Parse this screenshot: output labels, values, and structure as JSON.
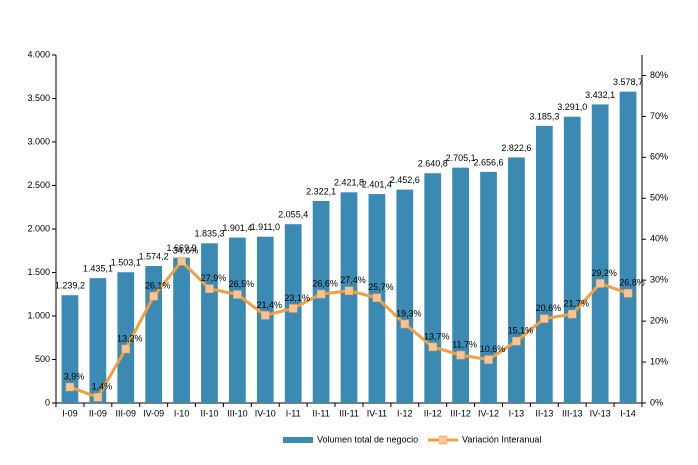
{
  "chart_data": {
    "type": "bar-line",
    "categories": [
      "I-09",
      "II-09",
      "III-09",
      "IV-09",
      "I-10",
      "II-10",
      "III-10",
      "IV-10",
      "I-11",
      "II-11",
      "III-11",
      "IV-11",
      "I-12",
      "II-12",
      "III-12",
      "IV-12",
      "I-13",
      "II-13",
      "III-13",
      "IV-13",
      "I-14"
    ],
    "series": [
      {
        "name": "Volumen total de negocio",
        "type": "bar",
        "color": "#3b8ab4",
        "values": [
          1239.2,
          1435.1,
          1503.1,
          1574.2,
          1669.9,
          1835.3,
          1901.4,
          1911.0,
          2055.4,
          2322.1,
          2421.8,
          2401.4,
          2452.6,
          2640.8,
          2705.1,
          2656.6,
          2822.6,
          3185.3,
          3291.0,
          3432.1,
          3578.7
        ],
        "value_labels": [
          "1.239,2",
          "1.435,1",
          "1.503,1",
          "1.574,2",
          "1.669,9",
          "1.835,3",
          "1.901,4",
          "1.911,0",
          "2.055,4",
          "2.322,1",
          "2.421,8",
          "2.401,4",
          "2.452,6",
          "2.640,8",
          "2.705,1",
          "2.656,6",
          "2.822,6",
          "3.185,3",
          "3.291,0",
          "3.432,1",
          "3.578,7"
        ]
      },
      {
        "name": "Variación Interanual",
        "type": "line",
        "axis": "y2",
        "color": "#f0a040",
        "marker_color": "#f7c49a",
        "values": [
          3.9,
          1.4,
          13.2,
          26.1,
          34.6,
          27.9,
          26.5,
          21.4,
          23.1,
          26.6,
          27.4,
          25.7,
          19.3,
          13.7,
          11.7,
          10.6,
          15.1,
          20.6,
          21.7,
          29.2,
          26.8
        ],
        "value_labels": [
          "3,9%",
          "1,4%",
          "13,2%",
          "26,1%",
          "34,6%",
          "27,9%",
          "26,5%",
          "21,4%",
          "23,1%",
          "26,6%",
          "27,4%",
          "25,7%",
          "19,3%",
          "13,7%",
          "11,7%",
          "10,6%",
          "15,1%",
          "20,6%",
          "21,7%",
          "29,2%",
          "26,8%"
        ]
      }
    ],
    "ylim": [
      0,
      4000
    ],
    "yticks": [
      0,
      500,
      {
        "value": 1000,
        "label": "1.000"
      },
      {
        "value": 1500,
        "label": "1.500"
      },
      {
        "value": 2000,
        "label": "2.000"
      },
      {
        "value": 2500,
        "label": "2.500"
      },
      {
        "value": 3000,
        "label": "3.000"
      },
      {
        "value": 3500,
        "label": "3.500"
      },
      {
        "value": 4000,
        "label": "4.000"
      }
    ],
    "y2lim": [
      0,
      85
    ],
    "y2ticks": [
      {
        "value": 0,
        "label": "0%"
      },
      {
        "value": 10,
        "label": "10%"
      },
      {
        "value": 20,
        "label": "20%"
      },
      {
        "value": 30,
        "label": "30%"
      },
      {
        "value": 40,
        "label": "40%"
      },
      {
        "value": 50,
        "label": "50%"
      },
      {
        "value": 60,
        "label": "60%"
      },
      {
        "value": 70,
        "label": "70%"
      },
      {
        "value": 80,
        "label": "80%"
      }
    ]
  }
}
